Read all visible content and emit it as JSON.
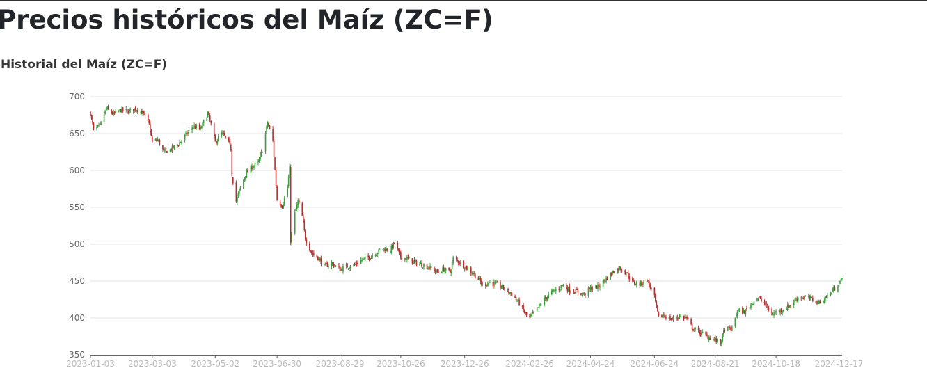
{
  "page_title": "Precios históricos del Maíz (ZC=F)",
  "chart_title": "Historial del Maíz (ZC=F)",
  "chart_data": {
    "type": "candlestick",
    "title": "Historial del Maíz (ZC=F)",
    "xlabel": "",
    "ylabel": "",
    "ylim": [
      350,
      700
    ],
    "y_ticks": [
      "350",
      "400",
      "450",
      "500",
      "550",
      "600",
      "650",
      "700"
    ],
    "x_ticks": [
      "2023-01-03",
      "2023-03-03",
      "2023-05-02",
      "2023-06-30",
      "2023-08-29",
      "2023-10-26",
      "2023-12-26",
      "2024-02-26",
      "2024-04-24",
      "2024-06-24",
      "2024-08-21",
      "2024-10-18",
      "2024-12-17"
    ],
    "x_range": [
      "2023-01-03",
      "2024-12-17"
    ],
    "grid": true,
    "legend": "none",
    "up_color": "#3c9d3c",
    "down_color": "#b82e2e",
    "anchors": [
      [
        "2023-01-03",
        678
      ],
      [
        "2023-01-06",
        655
      ],
      [
        "2023-01-12",
        660
      ],
      [
        "2023-01-18",
        684
      ],
      [
        "2023-01-25",
        676
      ],
      [
        "2023-02-01",
        682
      ],
      [
        "2023-02-08",
        680
      ],
      [
        "2023-02-15",
        684
      ],
      [
        "2023-02-22",
        678
      ],
      [
        "2023-02-28",
        662
      ],
      [
        "2023-03-03",
        638
      ],
      [
        "2023-03-08",
        642
      ],
      [
        "2023-03-14",
        625
      ],
      [
        "2023-03-20",
        628
      ],
      [
        "2023-03-28",
        636
      ],
      [
        "2023-04-04",
        648
      ],
      [
        "2023-04-11",
        660
      ],
      [
        "2023-04-18",
        656
      ],
      [
        "2023-04-25",
        678
      ],
      [
        "2023-04-28",
        662
      ],
      [
        "2023-05-02",
        638
      ],
      [
        "2023-05-08",
        650
      ],
      [
        "2023-05-12",
        645
      ],
      [
        "2023-05-17",
        630
      ],
      [
        "2023-05-18",
        595
      ],
      [
        "2023-05-22",
        558
      ],
      [
        "2023-05-25",
        572
      ],
      [
        "2023-05-31",
        595
      ],
      [
        "2023-06-06",
        605
      ],
      [
        "2023-06-12",
        610
      ],
      [
        "2023-06-16",
        628
      ],
      [
        "2023-06-21",
        665
      ],
      [
        "2023-06-26",
        640
      ],
      [
        "2023-06-30",
        560
      ],
      [
        "2023-07-05",
        552
      ],
      [
        "2023-07-10",
        578
      ],
      [
        "2023-07-12",
        602
      ],
      [
        "2023-07-13",
        505
      ],
      [
        "2023-07-17",
        542
      ],
      [
        "2023-07-20",
        558
      ],
      [
        "2023-07-24",
        538
      ],
      [
        "2023-07-27",
        508
      ],
      [
        "2023-08-02",
        488
      ],
      [
        "2023-08-08",
        482
      ],
      [
        "2023-08-14",
        470
      ],
      [
        "2023-08-21",
        474
      ],
      [
        "2023-08-29",
        466
      ],
      [
        "2023-09-05",
        470
      ],
      [
        "2023-09-12",
        472
      ],
      [
        "2023-09-18",
        478
      ],
      [
        "2023-09-25",
        482
      ],
      [
        "2023-10-02",
        488
      ],
      [
        "2023-10-09",
        494
      ],
      [
        "2023-10-16",
        492
      ],
      [
        "2023-10-20",
        502
      ],
      [
        "2023-10-26",
        482
      ],
      [
        "2023-11-02",
        480
      ],
      [
        "2023-11-09",
        475
      ],
      [
        "2023-11-16",
        472
      ],
      [
        "2023-11-23",
        468
      ],
      [
        "2023-11-30",
        462
      ],
      [
        "2023-12-06",
        466
      ],
      [
        "2023-12-12",
        462
      ],
      [
        "2023-12-15",
        480
      ],
      [
        "2023-12-21",
        476
      ],
      [
        "2023-12-26",
        470
      ],
      [
        "2024-01-05",
        458
      ],
      [
        "2024-01-12",
        445
      ],
      [
        "2024-01-19",
        448
      ],
      [
        "2024-01-26",
        445
      ],
      [
        "2024-02-02",
        440
      ],
      [
        "2024-02-09",
        432
      ],
      [
        "2024-02-16",
        420
      ],
      [
        "2024-02-22",
        405
      ],
      [
        "2024-02-26",
        400
      ],
      [
        "2024-03-04",
        412
      ],
      [
        "2024-03-11",
        425
      ],
      [
        "2024-03-18",
        435
      ],
      [
        "2024-03-25",
        440
      ],
      [
        "2024-03-28",
        445
      ],
      [
        "2024-04-04",
        438
      ],
      [
        "2024-04-11",
        436
      ],
      [
        "2024-04-18",
        432
      ],
      [
        "2024-04-24",
        440
      ],
      [
        "2024-05-01",
        442
      ],
      [
        "2024-05-08",
        452
      ],
      [
        "2024-05-15",
        462
      ],
      [
        "2024-05-22",
        468
      ],
      [
        "2024-05-29",
        460
      ],
      [
        "2024-06-03",
        448
      ],
      [
        "2024-06-10",
        446
      ],
      [
        "2024-06-17",
        452
      ],
      [
        "2024-06-24",
        428
      ],
      [
        "2024-06-28",
        400
      ],
      [
        "2024-07-03",
        404
      ],
      [
        "2024-07-10",
        398
      ],
      [
        "2024-07-17",
        402
      ],
      [
        "2024-07-24",
        400
      ],
      [
        "2024-07-31",
        385
      ],
      [
        "2024-08-07",
        380
      ],
      [
        "2024-08-14",
        375
      ],
      [
        "2024-08-21",
        370
      ],
      [
        "2024-08-26",
        366
      ],
      [
        "2024-08-30",
        385
      ],
      [
        "2024-09-06",
        385
      ],
      [
        "2024-09-11",
        410
      ],
      [
        "2024-09-18",
        408
      ],
      [
        "2024-09-25",
        420
      ],
      [
        "2024-09-30",
        428
      ],
      [
        "2024-10-07",
        420
      ],
      [
        "2024-10-14",
        405
      ],
      [
        "2024-10-18",
        408
      ],
      [
        "2024-10-25",
        412
      ],
      [
        "2024-11-01",
        418
      ],
      [
        "2024-11-08",
        428
      ],
      [
        "2024-11-15",
        428
      ],
      [
        "2024-11-22",
        425
      ],
      [
        "2024-11-29",
        420
      ],
      [
        "2024-12-06",
        430
      ],
      [
        "2024-12-13",
        440
      ],
      [
        "2024-12-17",
        448
      ],
      [
        "2024-12-20",
        452
      ]
    ]
  }
}
